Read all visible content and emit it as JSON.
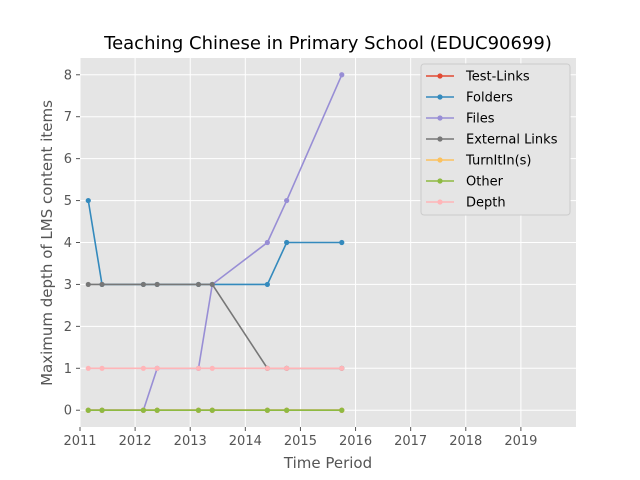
{
  "chart_data": {
    "type": "line",
    "title": "Teaching Chinese in Primary School (EDUC90699)",
    "xlabel": "Time Period",
    "ylabel": "Maximum depth of LMS content items",
    "xlim": [
      2011,
      2020
    ],
    "ylim": [
      -0.4,
      8.4
    ],
    "x_ticks": [
      "2011",
      "2012",
      "2013",
      "2014",
      "2015",
      "2016",
      "2017",
      "2018",
      "2019"
    ],
    "y_ticks": [
      "0",
      "1",
      "2",
      "3",
      "4",
      "5",
      "6",
      "7",
      "8"
    ],
    "grid": true,
    "legend_position": "top-right",
    "x": [
      2011.15,
      2011.4,
      2012.15,
      2012.4,
      2013.15,
      2013.4,
      2014.4,
      2014.75,
      2015.75
    ],
    "series": [
      {
        "name": "Test-Links",
        "color": "#E24A33",
        "values": [
          0,
          0,
          0,
          0,
          0,
          0,
          0,
          0,
          0
        ]
      },
      {
        "name": "Folders",
        "color": "#348ABD",
        "values": [
          5,
          3,
          3,
          3,
          3,
          3,
          3,
          4,
          4
        ]
      },
      {
        "name": "Files",
        "color": "#988ED5",
        "values": [
          0,
          0,
          0,
          1,
          1,
          3,
          4,
          5,
          8
        ]
      },
      {
        "name": "External Links",
        "color": "#777777",
        "values": [
          3,
          3,
          3,
          3,
          3,
          3,
          1,
          1,
          1
        ]
      },
      {
        "name": "TurnItIn(s)",
        "color": "#FBC15E",
        "values": [
          0,
          0,
          0,
          0,
          0,
          0,
          0,
          0,
          0
        ]
      },
      {
        "name": "Other",
        "color": "#8EBA42",
        "values": [
          0,
          0,
          0,
          0,
          0,
          0,
          0,
          0,
          0
        ]
      },
      {
        "name": "Depth",
        "color": "#FFB5B8",
        "values": [
          1,
          1,
          1,
          1,
          1,
          1,
          1,
          1,
          1
        ]
      }
    ]
  }
}
